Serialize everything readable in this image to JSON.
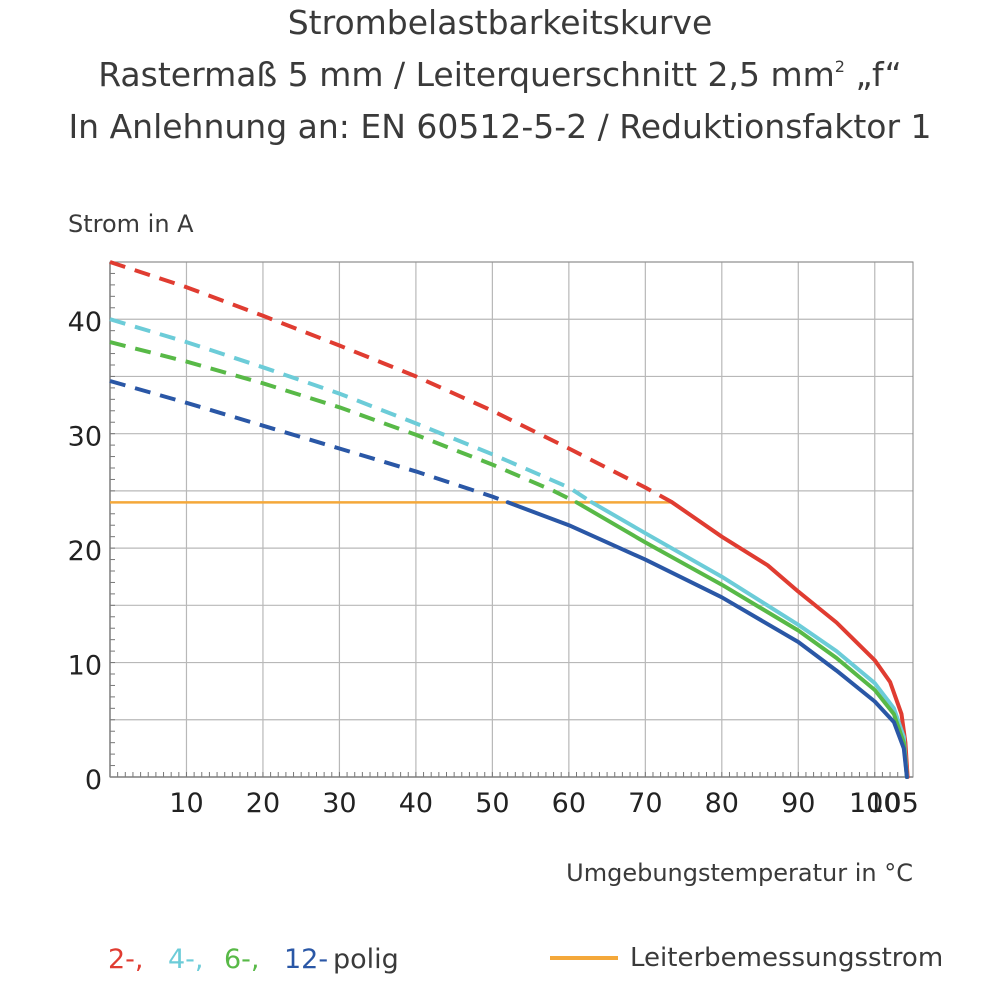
{
  "chart_data": {
    "type": "line",
    "title": "Strombelastbarkeitskurve",
    "subtitle_main": "Rastermaß 5 mm / Leiterquerschnitt 2,5 mm",
    "subtitle_sup": "2",
    "subtitle_tail": " „f“",
    "subtitle2": "In Anlehnung an: EN 60512-5-2 / Reduktionsfaktor 1",
    "ylabel": "Strom in A",
    "xlabel": "Umgebungstemperatur in  °C",
    "xlim": [
      0,
      105
    ],
    "ylim": [
      0,
      45
    ],
    "x_ticks": [
      10,
      20,
      30,
      40,
      50,
      60,
      70,
      80,
      90,
      100,
      105
    ],
    "y_ticks": [
      0,
      10,
      20,
      30,
      40
    ],
    "grid": true,
    "series": [
      {
        "name": "2-,",
        "color": "#e03c31",
        "dashed": [
          [
            0,
            45
          ],
          [
            10,
            42.8
          ],
          [
            20,
            40.3
          ],
          [
            30,
            37.7
          ],
          [
            40,
            35
          ],
          [
            50,
            32
          ],
          [
            60,
            28.7
          ],
          [
            70,
            25.3
          ],
          [
            73.5,
            24
          ]
        ],
        "solid": [
          [
            73.5,
            24
          ],
          [
            80,
            21
          ],
          [
            86,
            18.5
          ],
          [
            90,
            16.2
          ],
          [
            95,
            13.5
          ],
          [
            100,
            10.2
          ],
          [
            102,
            8.3
          ],
          [
            103.5,
            5.5
          ],
          [
            104,
            3
          ],
          [
            104.3,
            0
          ]
        ]
      },
      {
        "name": "4-,",
        "color": "#6cccd8",
        "dashed": [
          [
            0,
            40
          ],
          [
            10,
            38
          ],
          [
            20,
            35.8
          ],
          [
            30,
            33.5
          ],
          [
            40,
            30.9
          ],
          [
            50,
            28.2
          ],
          [
            60,
            25.3
          ],
          [
            63,
            24
          ]
        ],
        "solid": [
          [
            63,
            24
          ],
          [
            70,
            21.3
          ],
          [
            80,
            17.5
          ],
          [
            90,
            13.3
          ],
          [
            95,
            11
          ],
          [
            100,
            8.2
          ],
          [
            102.5,
            6
          ],
          [
            103.8,
            3.5
          ],
          [
            104.2,
            0
          ]
        ]
      },
      {
        "name": "6-,",
        "color": "#58b947",
        "dashed": [
          [
            0,
            38
          ],
          [
            10,
            36.3
          ],
          [
            20,
            34.4
          ],
          [
            30,
            32.3
          ],
          [
            40,
            29.9
          ],
          [
            50,
            27.3
          ],
          [
            58,
            25
          ],
          [
            61,
            24
          ]
        ],
        "solid": [
          [
            61,
            24
          ],
          [
            70,
            20.5
          ],
          [
            80,
            16.8
          ],
          [
            90,
            12.8
          ],
          [
            95,
            10.4
          ],
          [
            100,
            7.6
          ],
          [
            102.5,
            5.5
          ],
          [
            103.8,
            3
          ],
          [
            104.2,
            0
          ]
        ]
      },
      {
        "name": "12-",
        "color": "#2a57a6",
        "dashed": [
          [
            0,
            34.6
          ],
          [
            10,
            32.7
          ],
          [
            20,
            30.7
          ],
          [
            30,
            28.7
          ],
          [
            40,
            26.7
          ],
          [
            50,
            24.5
          ],
          [
            52,
            24
          ]
        ],
        "solid": [
          [
            52,
            24
          ],
          [
            60,
            22
          ],
          [
            70,
            19
          ],
          [
            80,
            15.7
          ],
          [
            90,
            11.8
          ],
          [
            95,
            9.3
          ],
          [
            100,
            6.6
          ],
          [
            102.5,
            4.8
          ],
          [
            103.8,
            2.5
          ],
          [
            104.2,
            0
          ]
        ]
      }
    ],
    "reference_line": {
      "name": "Leiterbemessungsstrom",
      "value": 24,
      "x_start": 0,
      "x_end": 73.5,
      "color": "#f4a83a"
    },
    "legend": {
      "items": [
        {
          "label": "2-,",
          "color": "#e03c31"
        },
        {
          "label": "4-,",
          "color": "#6cccd8"
        },
        {
          "label": "6-,",
          "color": "#58b947"
        },
        {
          "label": "12-",
          "color": "#2a57a6"
        }
      ],
      "suffix": "polig",
      "reference_label": "Leiterbemessungsstrom"
    }
  }
}
